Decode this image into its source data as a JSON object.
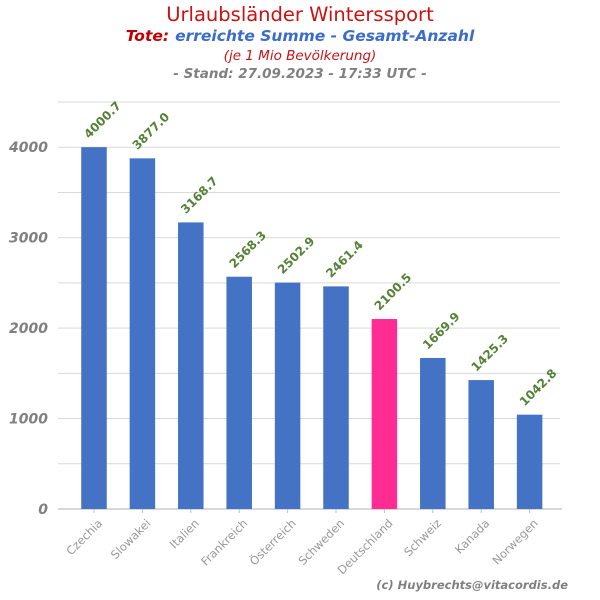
{
  "header": {
    "title": "Urlaubsländer Winterssport",
    "subtitle_prefix": "Tote:",
    "subtitle_main": "erreichte Summe - Gesamt-Anzahl",
    "subtitle_note": "(je 1 Mio Bevölkerung)",
    "timestamp_line": "- Stand: 27.09.2023 - 17:33 UTC -"
  },
  "footer": {
    "credit": "(c) Huybrechts@vitacordis.de"
  },
  "colors": {
    "title_red": "#CC1111",
    "accent_red": "#C00000",
    "subtitle_blue": "#3B6CC9",
    "bar_blue": "#4472C4",
    "bar_highlight_pink": "#FF2D92",
    "value_label_green": "#548235",
    "axis_text_gray": "#808080",
    "category_text_gray": "#999999",
    "gridline_gray": "#D9D9D9",
    "axis_line_gray": "#C0C0C0"
  },
  "chart_data": {
    "type": "bar",
    "title": "Urlaubsländer Winterssport",
    "subtitle": "Tote: erreichte Summe - Gesamt-Anzahl (je 1 Mio Bevölkerung) - Stand: 27.09.2023 - 17:33 UTC -",
    "categories": [
      "Czechia",
      "Slowakei",
      "Italien",
      "Frankreich",
      "Österreich",
      "Schweden",
      "Deutschland",
      "Schweiz",
      "Kanada",
      "Norwegen"
    ],
    "values": [
      4000.7,
      3877.0,
      3168.7,
      2568.3,
      2502.9,
      2461.4,
      2100.5,
      1669.9,
      1425.3,
      1042.8
    ],
    "highlight_category": "Deutschland",
    "xlabel": "",
    "ylabel": "",
    "ylim": [
      0,
      4500
    ],
    "y_gridline_step": 500,
    "y_ticklabel_step": 1000,
    "grid": true,
    "legend": false,
    "value_labels_shown": true,
    "value_label_rotation_deg": -45,
    "category_label_rotation_deg": -45
  }
}
